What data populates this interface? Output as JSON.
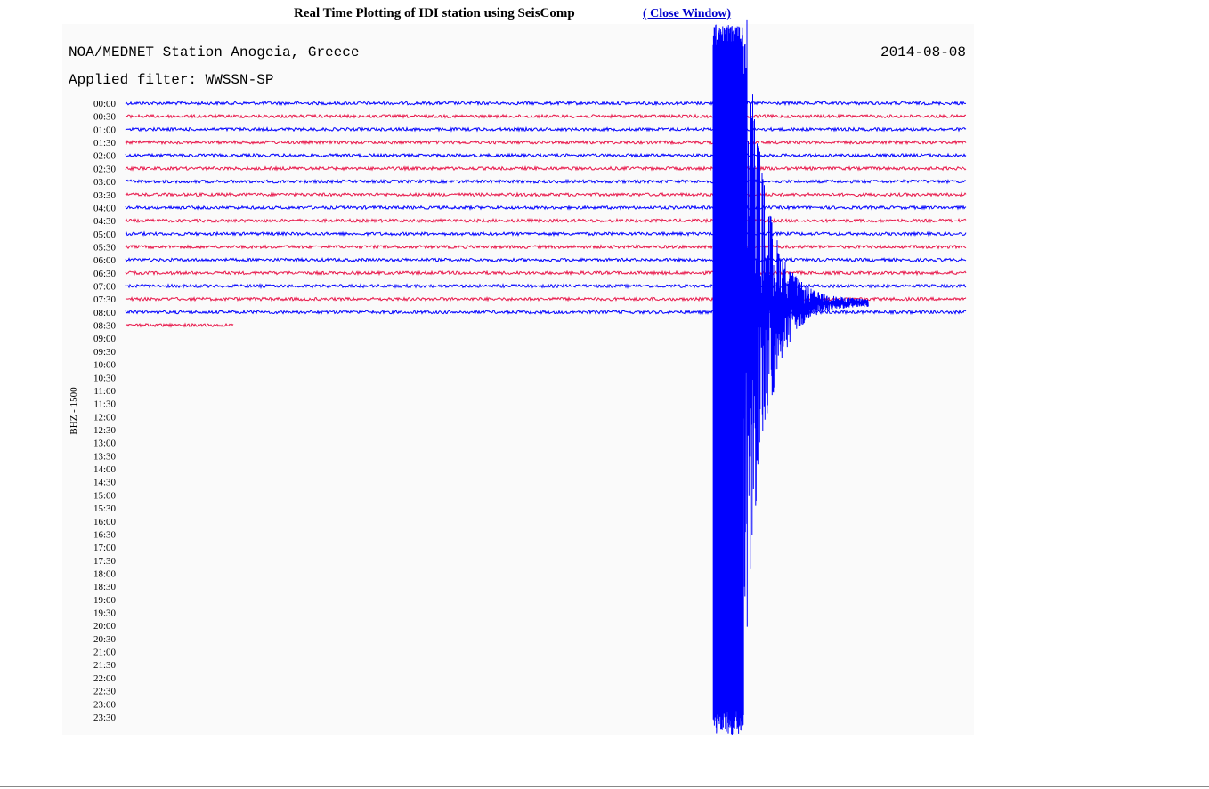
{
  "header": {
    "title": "Real Time Plotting of IDI station using SeisComp",
    "link": "( Close Window)"
  },
  "plot": {
    "station": "NOA/MEDNET Station Anogeia, Greece",
    "date": "2014-08-08",
    "filter": "Applied filter: WWSSN-SP",
    "channel": "BHZ - 1500",
    "times": [
      "00:00",
      "00:30",
      "01:00",
      "01:30",
      "02:00",
      "02:30",
      "03:00",
      "03:30",
      "04:00",
      "04:30",
      "05:00",
      "05:30",
      "06:00",
      "06:30",
      "07:00",
      "07:30",
      "08:00",
      "08:30",
      "09:00",
      "09:30",
      "10:00",
      "10:30",
      "11:00",
      "11:30",
      "12:00",
      "12:30",
      "13:00",
      "13:30",
      "14:00",
      "14:30",
      "15:00",
      "15:30",
      "16:00",
      "16:30",
      "17:00",
      "17:30",
      "18:00",
      "18:30",
      "19:00",
      "19:30",
      "20:00",
      "20:30",
      "21:00",
      "21:30",
      "22:00",
      "22:30",
      "23:00",
      "23:30"
    ]
  }
}
